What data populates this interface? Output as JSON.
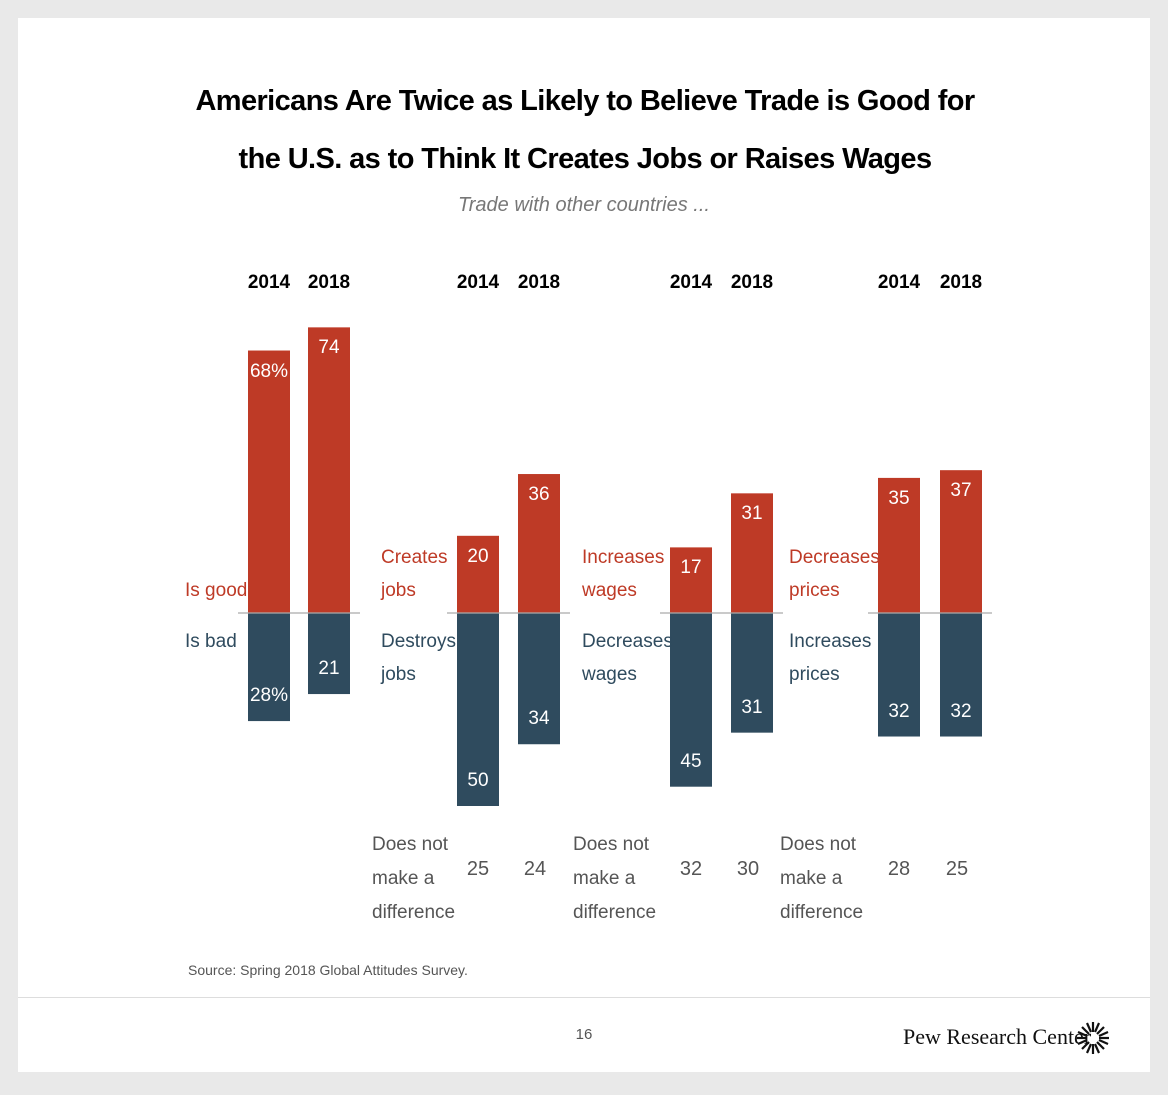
{
  "chart_data": {
    "type": "diverging-bar",
    "title": "Americans Are Twice as Likely to Believe Trade is Good for the U.S. as to Think It Creates Jobs or Raises Wages",
    "subtitle": "Trade with other countries ...",
    "source": "Source: Spring 2018 Global Attitudes Survey.",
    "page_number": "16",
    "logo": "Pew Research Center",
    "panels": [
      {
        "categories": [
          "2014",
          "2018"
        ],
        "series": [
          {
            "name": "Is good",
            "color": "#be3a26",
            "values": [
              68,
              74
            ],
            "value_labels": [
              "68%",
              "74"
            ]
          },
          {
            "name": "Is bad",
            "color": "#2f4b5e",
            "values": [
              28,
              21
            ],
            "value_labels": [
              "28%",
              "21"
            ]
          }
        ]
      },
      {
        "categories": [
          "2014",
          "2018"
        ],
        "series": [
          {
            "name": "Creates jobs",
            "color": "#be3a26",
            "values": [
              20,
              36
            ]
          },
          {
            "name": "Destroys jobs",
            "color": "#2f4b5e",
            "values": [
              50,
              34
            ]
          }
        ],
        "neutral": {
          "name": "Does not make a difference",
          "values": [
            25,
            24
          ]
        }
      },
      {
        "categories": [
          "2014",
          "2018"
        ],
        "series": [
          {
            "name": "Increases wages",
            "color": "#be3a26",
            "values": [
              17,
              31
            ]
          },
          {
            "name": "Decreases wages",
            "color": "#2f4b5e",
            "values": [
              45,
              31
            ]
          }
        ],
        "neutral": {
          "name": "Does not make a difference",
          "values": [
            32,
            30
          ]
        }
      },
      {
        "categories": [
          "2014",
          "2018"
        ],
        "series": [
          {
            "name": "Decreases prices",
            "color": "#be3a26",
            "values": [
              35,
              37
            ]
          },
          {
            "name": "Increases prices",
            "color": "#2f4b5e",
            "values": [
              32,
              32
            ]
          }
        ],
        "neutral": {
          "name": "Does not make a difference",
          "values": [
            28,
            25
          ]
        }
      }
    ]
  }
}
